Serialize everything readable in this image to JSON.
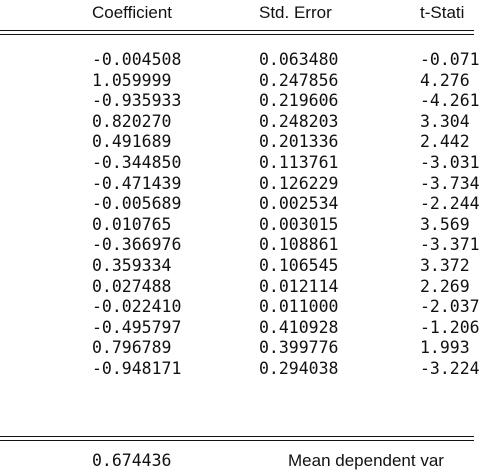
{
  "table": {
    "headers": {
      "coefficient": "Coefficient",
      "std_error": "Std. Error",
      "t_statistic": "t-Stati"
    },
    "rows": [
      {
        "coefficient": "-0.004508",
        "std_error": "0.063480",
        "t_statistic": "-0.071"
      },
      {
        "coefficient": "1.059999",
        "std_error": "0.247856",
        "t_statistic": "4.276"
      },
      {
        "coefficient": "-0.935933",
        "std_error": "0.219606",
        "t_statistic": "-4.261"
      },
      {
        "coefficient": "0.820270",
        "std_error": "0.248203",
        "t_statistic": "3.304"
      },
      {
        "coefficient": "0.491689",
        "std_error": "0.201336",
        "t_statistic": "2.442"
      },
      {
        "coefficient": "-0.344850",
        "std_error": "0.113761",
        "t_statistic": "-3.031"
      },
      {
        "coefficient": "-0.471439",
        "std_error": "0.126229",
        "t_statistic": "-3.734"
      },
      {
        "coefficient": "-0.005689",
        "std_error": "0.002534",
        "t_statistic": "-2.244"
      },
      {
        "coefficient": "0.010765",
        "std_error": "0.003015",
        "t_statistic": "3.569"
      },
      {
        "coefficient": "-0.366976",
        "std_error": "0.108861",
        "t_statistic": "-3.371"
      },
      {
        "coefficient": "0.359334",
        "std_error": "0.106545",
        "t_statistic": "3.372"
      },
      {
        "coefficient": "0.027488",
        "std_error": "0.012114",
        "t_statistic": "2.269"
      },
      {
        "coefficient": "-0.022410",
        "std_error": "0.011000",
        "t_statistic": "-2.037"
      },
      {
        "coefficient": "-0.495797",
        "std_error": "0.410928",
        "t_statistic": "-1.206"
      },
      {
        "coefficient": "0.796789",
        "std_error": "0.399776",
        "t_statistic": "1.993"
      },
      {
        "coefficient": "-0.948171",
        "std_error": "0.294038",
        "t_statistic": "-3.224"
      }
    ]
  },
  "footer": {
    "value": "0.674436",
    "label": "Mean dependent var"
  }
}
